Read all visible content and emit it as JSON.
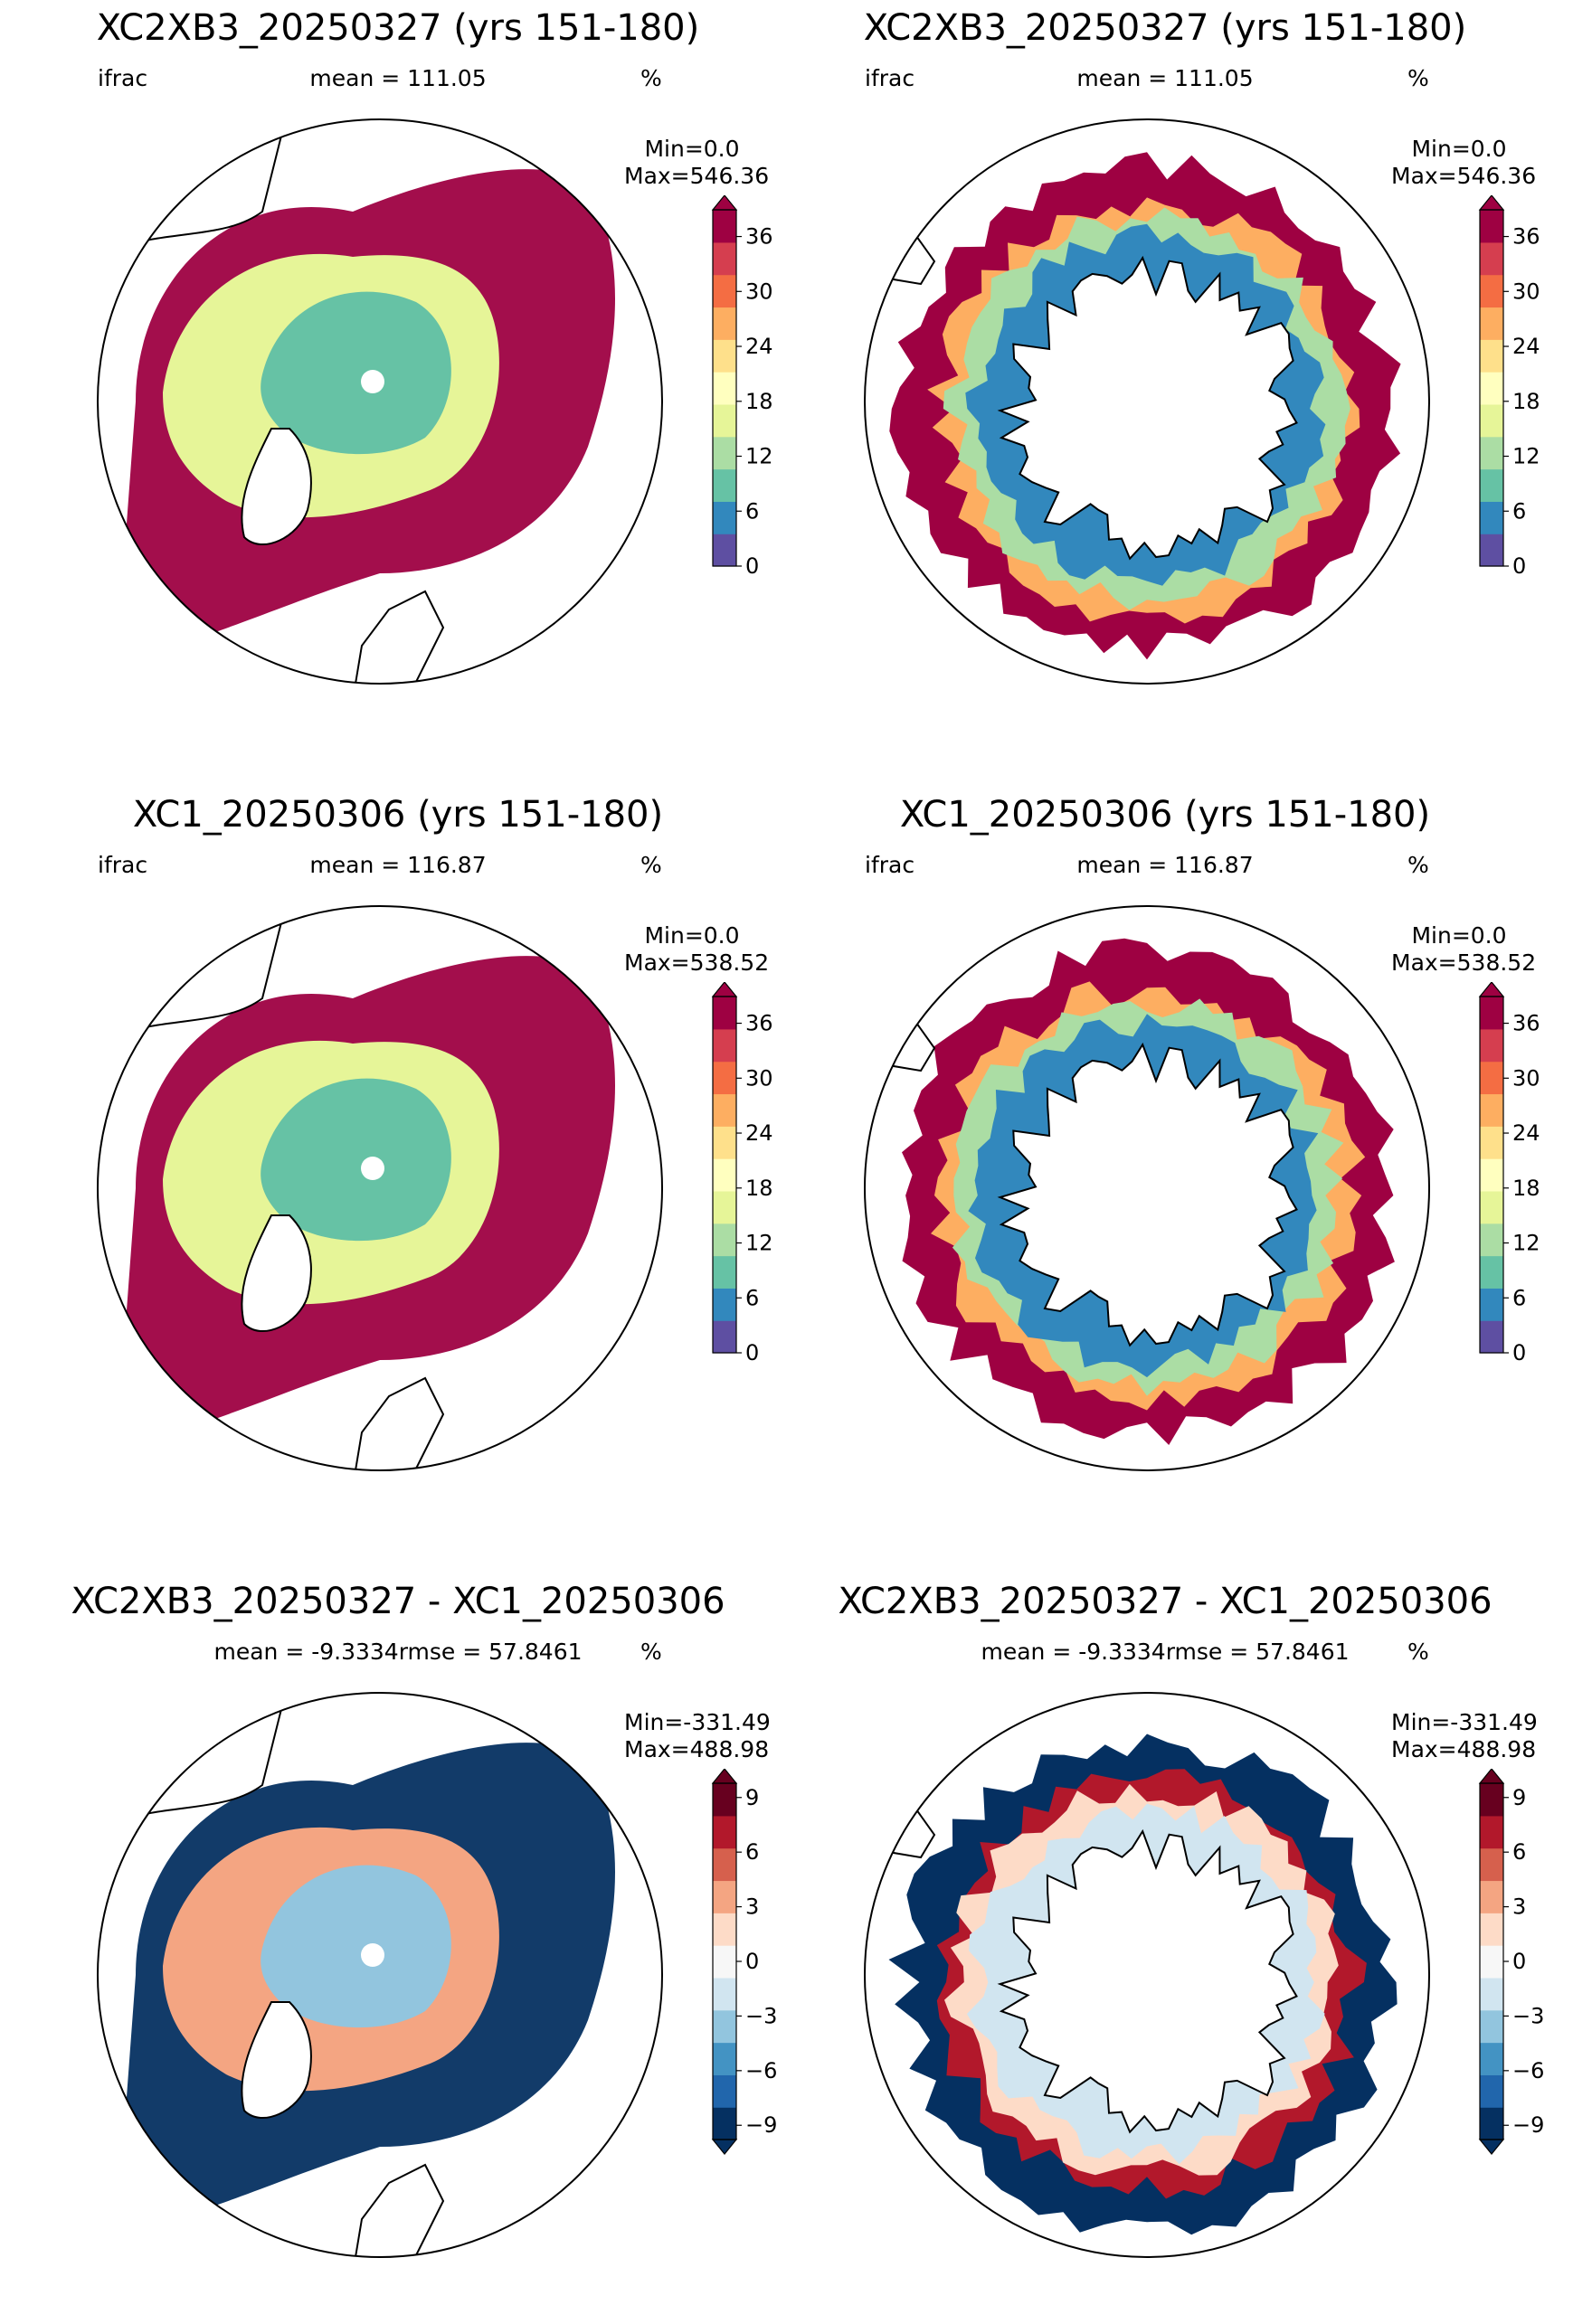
{
  "panels": [
    {
      "title": "XC2XB3_20250327 (yrs 151-180)",
      "variable": "ifrac",
      "stat": "mean = 111.05",
      "units": "%",
      "min": "Min=0.0",
      "max": "Max=546.36",
      "hemisphere": "north",
      "cmap": "seq"
    },
    {
      "title": "XC2XB3_20250327 (yrs 151-180)",
      "variable": "ifrac",
      "stat": "mean = 111.05",
      "units": "%",
      "min": "Min=0.0",
      "max": "Max=546.36",
      "hemisphere": "south",
      "cmap": "seq"
    },
    {
      "title": "XC1_20250306 (yrs 151-180)",
      "variable": "ifrac",
      "stat": "mean = 116.87",
      "units": "%",
      "min": "Min=0.0",
      "max": "Max=538.52",
      "hemisphere": "north",
      "cmap": "seq"
    },
    {
      "title": "XC1_20250306 (yrs 151-180)",
      "variable": "ifrac",
      "stat": "mean = 116.87",
      "units": "%",
      "min": "Min=0.0",
      "max": "Max=538.52",
      "hemisphere": "south",
      "cmap": "seq"
    },
    {
      "title": "XC2XB3_20250327 - XC1_20250306",
      "variable": "",
      "stat": "mean = -9.3334rmse = 57.8461",
      "units": "%",
      "min": "Min=-331.49",
      "max": "Max=488.98",
      "hemisphere": "north",
      "cmap": "div"
    },
    {
      "title": "XC2XB3_20250327 - XC1_20250306",
      "variable": "",
      "stat": "mean = -9.3334rmse = 57.8461",
      "units": "%",
      "min": "Min=-331.49",
      "max": "Max=488.98",
      "hemisphere": "south",
      "cmap": "div"
    }
  ],
  "colorbars": {
    "seq": {
      "ticks": [
        "0",
        "6",
        "12",
        "18",
        "24",
        "30",
        "36"
      ],
      "colors": [
        "#5e4fa2",
        "#3288bd",
        "#66c2a5",
        "#abdda4",
        "#e6f598",
        "#ffffbf",
        "#fee08b",
        "#fdae61",
        "#f46d43",
        "#d53e4f",
        "#9e0142"
      ],
      "over": "#9e0142"
    },
    "div": {
      "ticks": [
        "−9",
        "−6",
        "−3",
        "0",
        "3",
        "6",
        "9"
      ],
      "colors": [
        "#053061",
        "#2166ac",
        "#4393c3",
        "#92c5de",
        "#d1e5f0",
        "#f7f7f7",
        "#fddbc7",
        "#f4a582",
        "#d6604d",
        "#b2182b",
        "#67001f"
      ],
      "under": "#053061",
      "over": "#67001f"
    }
  }
}
